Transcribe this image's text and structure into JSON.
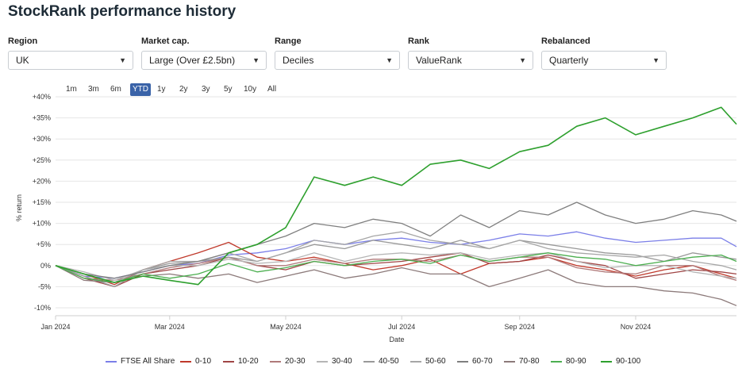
{
  "page": {
    "title": "StockRank performance history"
  },
  "filters": [
    {
      "label": "Region",
      "value": "UK"
    },
    {
      "label": "Market cap.",
      "value": "Large (Over £2.5bn)"
    },
    {
      "label": "Range",
      "value": "Deciles"
    },
    {
      "label": "Rank",
      "value": "ValueRank"
    },
    {
      "label": "Rebalanced",
      "value": "Quarterly"
    }
  ],
  "range_buttons": [
    {
      "label": "1m",
      "active": false
    },
    {
      "label": "3m",
      "active": false
    },
    {
      "label": "6m",
      "active": false
    },
    {
      "label": "YTD",
      "active": true
    },
    {
      "label": "1y",
      "active": false
    },
    {
      "label": "2y",
      "active": false
    },
    {
      "label": "3y",
      "active": false
    },
    {
      "label": "5y",
      "active": false
    },
    {
      "label": "10y",
      "active": false
    },
    {
      "label": "All",
      "active": false
    }
  ],
  "chart_data": {
    "type": "line",
    "xlabel": "Date",
    "ylabel": "% return",
    "x_ticks": [
      "Jan 2024",
      "Mar 2024",
      "May 2024",
      "Jul 2024",
      "Sep 2024",
      "Nov 2024"
    ],
    "y_ticks": [
      "-10%",
      "-5%",
      "0%",
      "+5%",
      "+10%",
      "+15%",
      "+20%",
      "+25%",
      "+30%",
      "+35%",
      "+40%"
    ],
    "ylim": [
      -10,
      40
    ],
    "grid": true,
    "legend_position": "bottom",
    "x": [
      "2024-01-01",
      "2024-01-16",
      "2024-02-01",
      "2024-02-16",
      "2024-03-01",
      "2024-03-16",
      "2024-04-01",
      "2024-04-16",
      "2024-05-01",
      "2024-05-16",
      "2024-06-01",
      "2024-06-16",
      "2024-07-01",
      "2024-07-16",
      "2024-08-01",
      "2024-08-16",
      "2024-09-01",
      "2024-09-16",
      "2024-10-01",
      "2024-10-16",
      "2024-11-01",
      "2024-11-16",
      "2024-12-01",
      "2024-12-16",
      "2024-12-24"
    ],
    "series": [
      {
        "name": "FTSE All Share",
        "color": "#7b7fe8",
        "values": [
          0,
          -2.5,
          -3,
          -1.5,
          0,
          0.5,
          2.5,
          3,
          4,
          6,
          5,
          6,
          6.5,
          5.5,
          5,
          6,
          7.5,
          7,
          8,
          6.5,
          5.5,
          6,
          6.5,
          6.5,
          4.5
        ]
      },
      {
        "name": "0-10",
        "color": "#c0392b",
        "values": [
          0,
          -2,
          -4.5,
          -1,
          1,
          3,
          5.5,
          2,
          1,
          2,
          0.5,
          -1,
          0,
          1.5,
          -2,
          0.5,
          1,
          2,
          0,
          -1,
          -2.5,
          -1,
          0,
          -2,
          -3
        ]
      },
      {
        "name": "10-20",
        "color": "#a04545",
        "values": [
          0,
          -3,
          -5,
          -2,
          -1,
          0,
          2,
          0,
          -1,
          1,
          0,
          0.5,
          1,
          2,
          3,
          0.5,
          1,
          2.5,
          1,
          0,
          -3,
          -2,
          -1,
          -1.5,
          -2
        ]
      },
      {
        "name": "20-30",
        "color": "#b07a7a",
        "values": [
          0,
          -3,
          -3.5,
          -2,
          -0.5,
          0.5,
          2,
          0,
          0,
          1.5,
          0.5,
          1.5,
          1.5,
          1,
          2.5,
          1,
          2,
          2,
          -0.5,
          -1.5,
          -2,
          0,
          0,
          -2.5,
          -3.5
        ]
      },
      {
        "name": "30-40",
        "color": "#b5b5b5",
        "values": [
          0,
          -1.5,
          -3.5,
          -1,
          0,
          0,
          1.5,
          0.5,
          1,
          3,
          1,
          2.5,
          3,
          2.5,
          3,
          1.5,
          2.5,
          3,
          1,
          -0.5,
          0,
          0,
          -1.5,
          -2.5,
          -3
        ]
      },
      {
        "name": "40-50",
        "color": "#999999",
        "values": [
          0,
          -2.5,
          -5,
          -1,
          0.5,
          1,
          2,
          1,
          3,
          5,
          4,
          6,
          5,
          4,
          6,
          4,
          6,
          5,
          4,
          3,
          2.5,
          1,
          3,
          2,
          1.5
        ]
      },
      {
        "name": "50-60",
        "color": "#a6a6a6",
        "values": [
          0,
          -2,
          -4,
          -1,
          1,
          1,
          3,
          1,
          3,
          6,
          5,
          7,
          8,
          6,
          5,
          4,
          6,
          4,
          3,
          2.5,
          2,
          2.5,
          1,
          0,
          -1
        ]
      },
      {
        "name": "60-70",
        "color": "#7f7f7f",
        "values": [
          0,
          -2,
          -3,
          -1.5,
          0,
          1,
          3,
          5,
          7,
          10,
          9,
          11,
          10,
          7,
          12,
          9,
          13,
          12,
          15,
          12,
          10,
          11,
          13,
          12,
          10.5
        ]
      },
      {
        "name": "70-80",
        "color": "#8c7a7a",
        "values": [
          0,
          -3.5,
          -4,
          -2.5,
          -2,
          -3,
          -2,
          -4,
          -2.5,
          -1,
          -3,
          -2,
          -0.5,
          -2,
          -2,
          -5,
          -3,
          -1,
          -4,
          -5,
          -5,
          -6,
          -6.5,
          -8,
          -9.5
        ]
      },
      {
        "name": "80-90",
        "color": "#4caf50",
        "values": [
          0,
          -3,
          -4,
          -2,
          -3,
          -2,
          0.5,
          -1.5,
          -0.5,
          1,
          0,
          1,
          1.5,
          0.5,
          2.5,
          1,
          2,
          3,
          2,
          1.5,
          0,
          1,
          2,
          2.5,
          1
        ]
      },
      {
        "name": "90-100",
        "color": "#2ea02e",
        "values": [
          0,
          -2,
          -4,
          -2.5,
          -3.5,
          -4.5,
          3,
          5,
          9,
          21,
          19,
          21,
          19,
          24,
          25,
          23,
          27,
          28.5,
          33,
          35,
          31,
          33,
          35,
          37.5,
          33.5
        ]
      }
    ]
  }
}
